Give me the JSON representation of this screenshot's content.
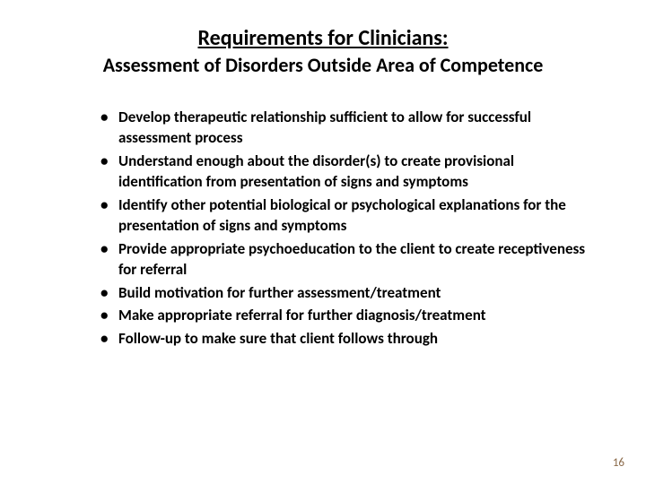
{
  "title": "Requirements for Clinicians:",
  "subtitle": "Assessment of Disorders Outside Area of Competence",
  "bullets": [
    "Develop therapeutic relationship sufficient to allow for successful assessment process",
    "Understand enough about the disorder(s) to create provisional identification from presentation of signs and symptoms",
    "Identify other potential biological or psychological explanations for the presentation of signs and symptoms",
    "Provide appropriate psychoeducation to the client to create receptiveness for referral",
    "Build motivation for further assessment/treatment",
    "Make appropriate referral for further diagnosis/treatment",
    "Follow-up to make sure that client follows through"
  ],
  "page_number": "16",
  "colors": {
    "background": "#ffffff",
    "text": "#000000",
    "pagenum": "#8b6a4a"
  },
  "fonts": {
    "family": "Calibri",
    "title_size": 24,
    "subtitle_size": 22,
    "body_size": 17,
    "pagenum_size": 13
  }
}
